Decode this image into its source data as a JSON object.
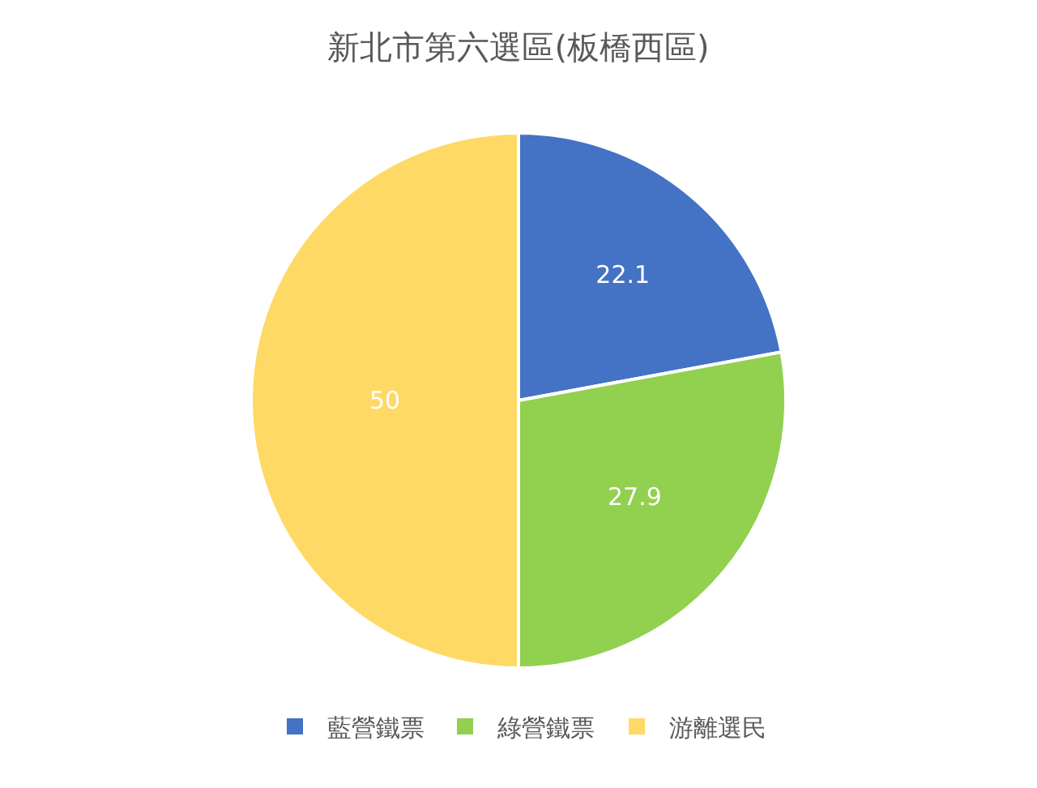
{
  "chart_data": {
    "type": "pie",
    "title": "新北市第六選區(板橋西區)",
    "categories": [
      "藍營鐵票",
      "綠營鐵票",
      "游離選民"
    ],
    "values": [
      22.1,
      27.9,
      50
    ],
    "colors": [
      "#4472c4",
      "#92d050",
      "#ffd966"
    ],
    "data_labels": true,
    "legend": "bottom"
  }
}
